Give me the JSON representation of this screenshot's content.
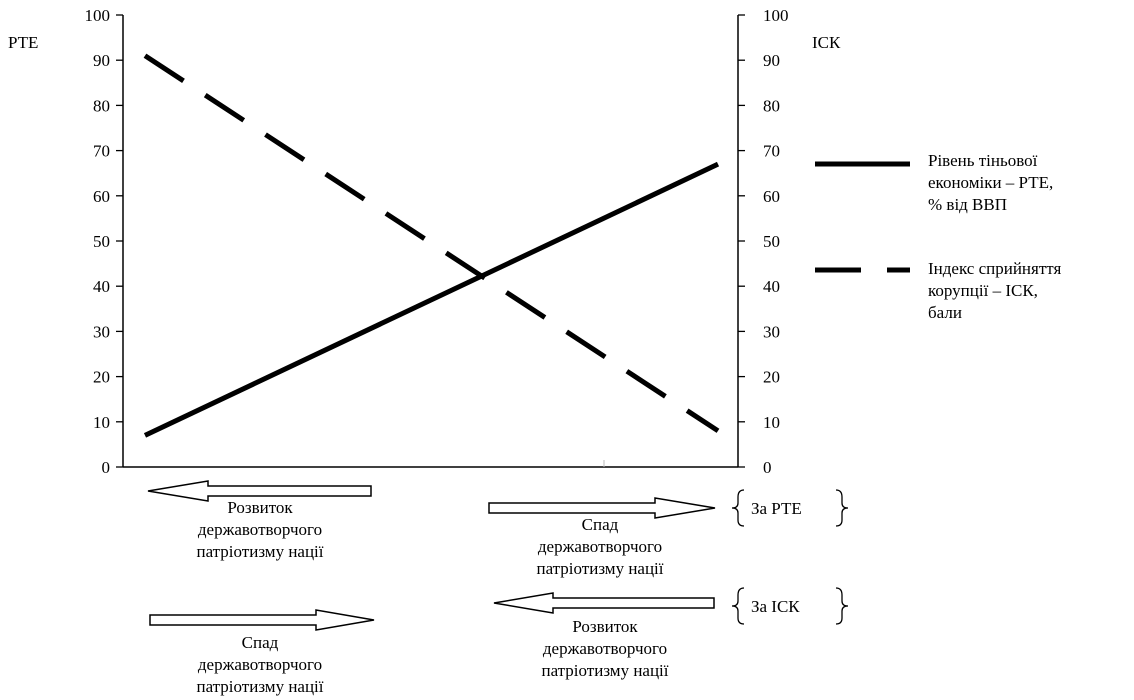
{
  "chart_data": {
    "type": "line",
    "title": "",
    "left_axis": {
      "label": "РТЕ",
      "ticks": [
        0,
        10,
        20,
        30,
        40,
        50,
        60,
        70,
        80,
        90,
        100
      ],
      "ylim": [
        0,
        100
      ]
    },
    "right_axis": {
      "label": "ІСК",
      "ticks": [
        0,
        10,
        20,
        30,
        40,
        50,
        60,
        70,
        80,
        90,
        100
      ],
      "ylim": [
        0,
        100
      ]
    },
    "x": [
      0,
      1
    ],
    "series": [
      {
        "name": "Рівень тіньової економіки – РТЕ, % від ВВП",
        "style": "solid",
        "axis": "left",
        "values": [
          7,
          67
        ]
      },
      {
        "name": "Індекс сприйняття корупції – ІСК, бали",
        "style": "dashed",
        "axis": "right",
        "values": [
          91,
          8
        ]
      }
    ],
    "legend_position": "right"
  },
  "legend": {
    "rte_text": "Рівень тіньової\nекономіки – РТЕ,\n% від ВВП",
    "isk_text": "Індекс сприйняття\nкорупції – ІСК,\nбали"
  },
  "annotations": {
    "row1_left_text": "Розвиток\nдержавотворчого\nпатріотизму нації",
    "row1_right_text": "Спад\nдержавотворчого\nпатріотизму нації",
    "row1_brace_text": "За РТЕ",
    "row2_left_text": "Спад\nдержавотворчого\nпатріотизму нації",
    "row2_right_text": "Розвиток\nдержавотворчого\nпатріотизму нації",
    "row2_brace_text": "За ІСК"
  }
}
